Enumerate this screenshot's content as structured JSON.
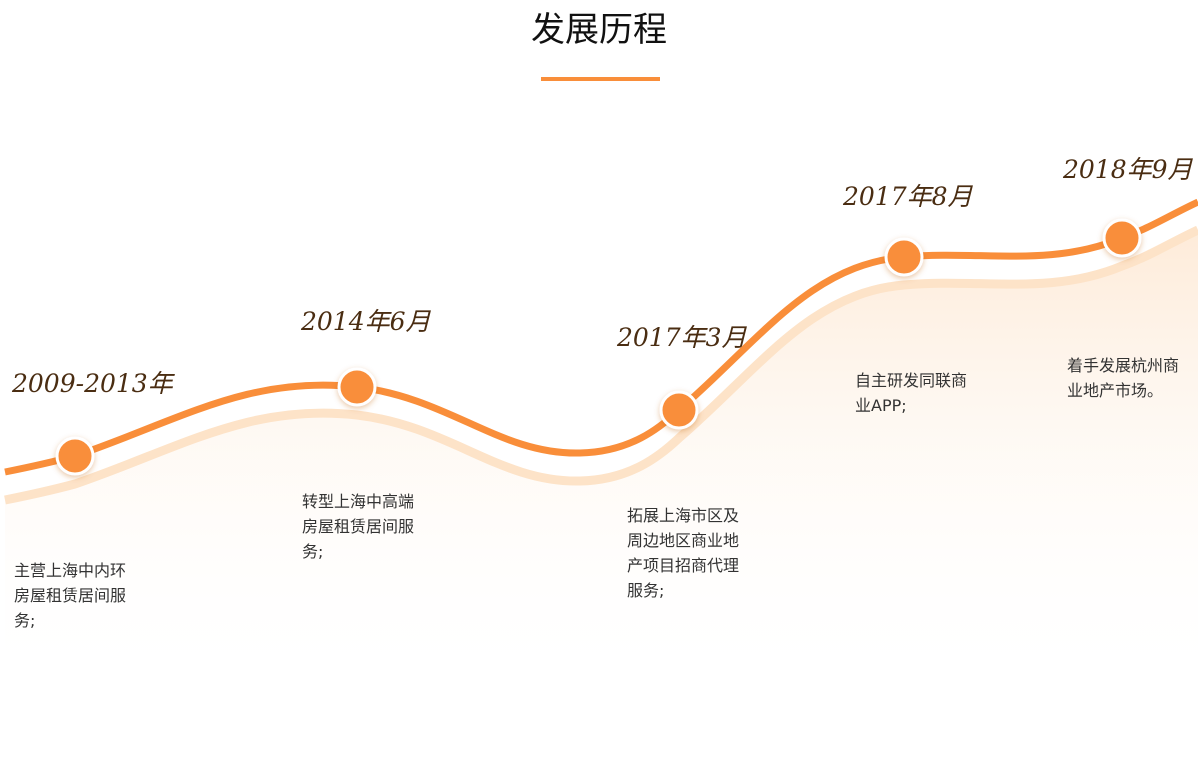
{
  "title": "发展历程",
  "milestones": [
    {
      "date": "2009-2013年",
      "description": "主营上海中内环房屋租赁居间服务;"
    },
    {
      "date": "2014年6月",
      "description": "转型上海中高端房屋租赁居间服务;"
    },
    {
      "date": "2017年3月",
      "description": "拓展上海市区及周边地区商业地产项目招商代理服务;"
    },
    {
      "date": "2017年8月",
      "description": "自主研发同联商业APP;"
    },
    {
      "date": "2018年9月",
      "description": "着手发展杭州商业地产市场。"
    }
  ]
}
